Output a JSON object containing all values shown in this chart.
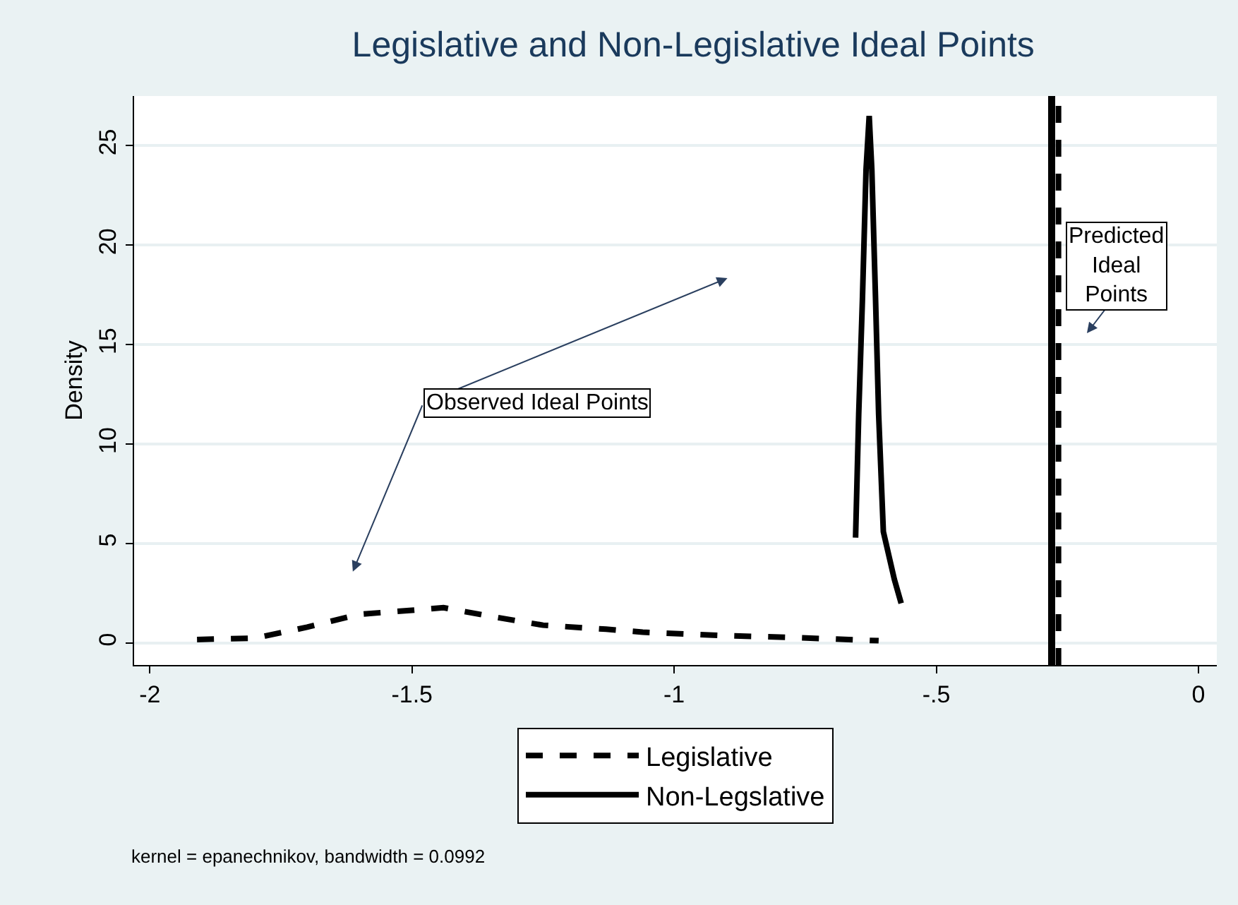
{
  "chart_data": {
    "type": "line",
    "title": "Legislative and Non-Legislative Ideal Points",
    "ylabel": "Density",
    "xlim": [
      -2.03,
      0.035
    ],
    "xticks": [
      {
        "value": -2,
        "label": "-2"
      },
      {
        "value": -1.5,
        "label": "-1.5"
      },
      {
        "value": -1,
        "label": "-1"
      },
      {
        "value": -0.5,
        "label": "-.5"
      },
      {
        "value": 0,
        "label": "0"
      }
    ],
    "ylim": [
      -1.1,
      27.5
    ],
    "yticks": [
      0,
      5,
      10,
      15,
      20,
      25
    ],
    "grid": "y",
    "legend": "bottom",
    "series": [
      {
        "name": "Legislative",
        "color": "#000000",
        "line_style": "dashed",
        "x": [
          -1.91,
          -1.8,
          -1.7,
          -1.6,
          -1.5,
          -1.44,
          -1.34,
          -1.25,
          -1.13,
          -1.06,
          -0.91,
          -0.77,
          -0.61
        ],
        "values": [
          0.18,
          0.25,
          0.8,
          1.45,
          1.65,
          1.78,
          1.3,
          0.9,
          0.7,
          0.55,
          0.38,
          0.28,
          0.12
        ]
      },
      {
        "name": "Non-Legslative",
        "color": "#000000",
        "line_style": "solid",
        "x": [
          -0.654,
          -0.648,
          -0.641,
          -0.634,
          -0.628,
          -0.623,
          -0.616,
          -0.61,
          -0.601,
          -0.58,
          -0.567
        ],
        "values": [
          5.3,
          11.5,
          17.2,
          23.8,
          26.5,
          23.8,
          17.4,
          11.5,
          5.6,
          3.2,
          2.0
        ]
      }
    ],
    "ref_lines": [
      {
        "axis": "x",
        "value": -0.28,
        "color": "#000000",
        "line_style": "solid"
      },
      {
        "axis": "x",
        "value": -0.267,
        "color": "#000000",
        "line_style": "dashed"
      }
    ],
    "annotations": [
      "Observed Ideal Points",
      "Predicted Ideal Points",
      "kernel = epanechnikov, bandwidth = 0.0992"
    ]
  }
}
